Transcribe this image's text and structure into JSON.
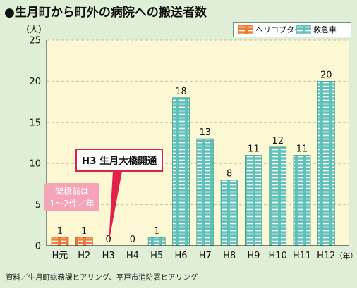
{
  "title": "●生月町から町外の病院への搬送者数",
  "source": "資料／生月町総務課ヒアリング、平戸市消防署ヒアリング",
  "legend": {
    "helicopter": "ヘリコプター",
    "ambulance": "救急車"
  },
  "annotations": {
    "bridge": "H3 生月大橋開通",
    "before_line1": "架橋前は",
    "before_line2": "1～2件／年"
  },
  "colors": {
    "background": "#dfeed7",
    "plot_background": "#fdf8d4",
    "ambulance_fill": "#5fc1b8",
    "helicopter_fill": "#f07c34",
    "callout_fill": "#e3204a",
    "before_box_fill": "#f4a3b8"
  },
  "chart_data": {
    "type": "bar",
    "title": "●生月町から町外の病院への搬送者数",
    "ylabel": "（人）",
    "xlabel": "（年）",
    "ylim": [
      0,
      25
    ],
    "yticks": [
      0,
      5,
      10,
      15,
      20,
      25
    ],
    "grid": true,
    "legend_position": "top-right",
    "categories": [
      "H元",
      "H2",
      "H3",
      "H4",
      "H5",
      "H6",
      "H7",
      "H8",
      "H9",
      "H10",
      "H11",
      "H12"
    ],
    "values": [
      1,
      1,
      0,
      0,
      1,
      18,
      13,
      8,
      11,
      12,
      11,
      20
    ],
    "data_labels": [
      "1",
      "1",
      "0",
      "0",
      "1",
      "18",
      "13",
      "8",
      "11",
      "12",
      "11",
      "20"
    ],
    "series_type": [
      "helicopter",
      "helicopter",
      "ambulance",
      "ambulance",
      "ambulance",
      "ambulance",
      "ambulance",
      "ambulance",
      "ambulance",
      "ambulance",
      "ambulance",
      "ambulance"
    ]
  }
}
